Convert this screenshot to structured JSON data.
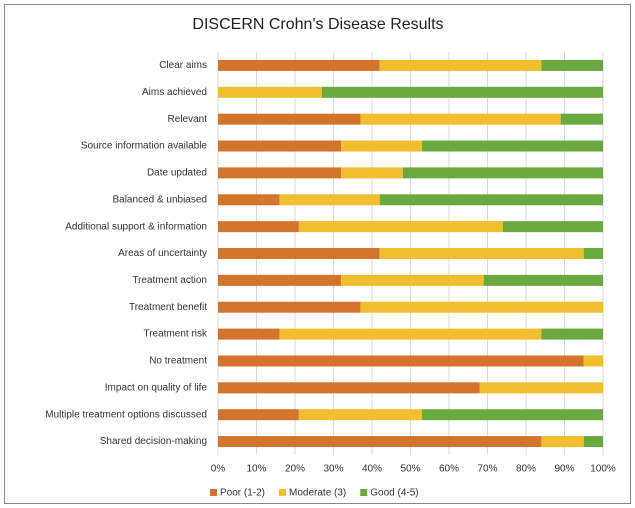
{
  "chart_data": {
    "type": "stacked_barh",
    "title": "DISCERN Crohn's Disease Results",
    "categories": [
      "Clear aims",
      "Aims achieved",
      "Relevant",
      "Source information available",
      "Date updated",
      "Balanced & unbiased",
      "Additional support & information",
      "Areas of uncertainty",
      "Treatment action",
      "Treatment benefit",
      "Treatment risk",
      "No treatment",
      "Impact on quality of life",
      "Multiple treatment options discussed",
      "Shared decision-making"
    ],
    "series": [
      {
        "name": "Poor (1-2)",
        "color": "#d4742c",
        "values": [
          42,
          0,
          37,
          32,
          32,
          16,
          21,
          42,
          32,
          37,
          16,
          95,
          68,
          21,
          84
        ]
      },
      {
        "name": "Moderate (3)",
        "color": "#f2bd2e",
        "values": [
          42,
          27,
          52,
          21,
          16,
          26,
          53,
          53,
          37,
          63,
          68,
          5,
          32,
          32,
          11
        ]
      },
      {
        "name": "Good (4-5)",
        "color": "#6aa940",
        "values": [
          16,
          73,
          11,
          47,
          52,
          58,
          26,
          5,
          31,
          0,
          16,
          0,
          0,
          47,
          5
        ]
      }
    ],
    "xlim": [
      0,
      100
    ],
    "xticks": [
      {
        "value": 0,
        "label": "0%"
      },
      {
        "value": 10,
        "label": "10%"
      },
      {
        "value": 20,
        "label": "20%"
      },
      {
        "value": 30,
        "label": "30%"
      },
      {
        "value": 40,
        "label": "40%"
      },
      {
        "value": 50,
        "label": "50%"
      },
      {
        "value": 60,
        "label": "60%"
      },
      {
        "value": 70,
        "label": "70%"
      },
      {
        "value": 80,
        "label": "80%"
      },
      {
        "value": 90,
        "label": "90%"
      },
      {
        "value": 100,
        "label": "100%"
      }
    ],
    "grid": true,
    "legend": "bottom"
  }
}
